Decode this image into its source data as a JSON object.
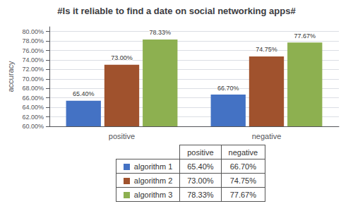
{
  "chart_data": {
    "type": "bar",
    "title": "#Is it reliable to find a date on social networking apps#",
    "categories": [
      "positive",
      "negative"
    ],
    "series": [
      {
        "name": "algorithm 1",
        "color": "#4472C4",
        "values": [
          65.4,
          66.7
        ],
        "value_labels": [
          "65.40%",
          "66.70%"
        ]
      },
      {
        "name": "algorithm 2",
        "color": "#A0522D",
        "values": [
          73.0,
          74.75
        ],
        "value_labels": [
          "73.00%",
          "74.75%"
        ]
      },
      {
        "name": "algorithm 3",
        "color": "#8DB050",
        "values": [
          78.33,
          77.67
        ],
        "value_labels": [
          "78.33%",
          "77.67%"
        ]
      }
    ],
    "ylabel": "accuracy",
    "ylim": [
      60.0,
      81.0
    ],
    "yticks": [
      {
        "value": 60,
        "label": "60.00%"
      },
      {
        "value": 62,
        "label": "62.00%"
      },
      {
        "value": 64,
        "label": "64.00%"
      },
      {
        "value": 66,
        "label": "66.00%"
      },
      {
        "value": 68,
        "label": "68.00%"
      },
      {
        "value": 70,
        "label": "70.00%"
      },
      {
        "value": 72,
        "label": "72.00%"
      },
      {
        "value": 74,
        "label": "74.00%"
      },
      {
        "value": 76,
        "label": "76.00%"
      },
      {
        "value": 78,
        "label": "78.00%"
      },
      {
        "value": 80,
        "label": "80.00%"
      }
    ],
    "grid": true,
    "data_labels": true
  }
}
